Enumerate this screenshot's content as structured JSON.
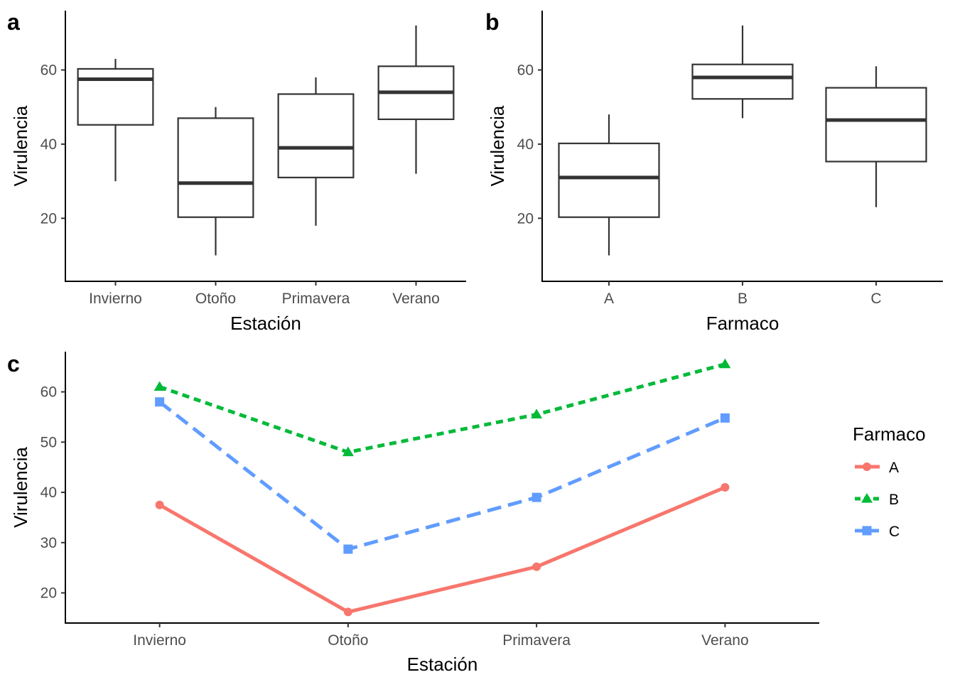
{
  "panels": {
    "a": {
      "tag": "a"
    },
    "b": {
      "tag": "b"
    },
    "c": {
      "tag": "c"
    }
  },
  "chart_data": [
    {
      "id": "a",
      "type": "box",
      "xlabel": "Estación",
      "ylabel": "Virulencia",
      "ylim": [
        3,
        76
      ],
      "yticks": [
        20,
        40,
        60
      ],
      "grid": false,
      "categories": [
        "Invierno",
        "Otoño",
        "Primavera",
        "Verano"
      ],
      "boxes": [
        {
          "category": "Invierno",
          "min": 30,
          "q1": 45.2,
          "median": 57.5,
          "q3": 60.3,
          "max": 63
        },
        {
          "category": "Otoño",
          "min": 10,
          "q1": 20.3,
          "median": 29.5,
          "q3": 47,
          "max": 50
        },
        {
          "category": "Primavera",
          "min": 18,
          "q1": 31,
          "median": 39,
          "q3": 53.5,
          "max": 58
        },
        {
          "category": "Verano",
          "min": 32,
          "q1": 46.7,
          "median": 54,
          "q3": 61,
          "max": 72
        }
      ]
    },
    {
      "id": "b",
      "type": "box",
      "xlabel": "Farmaco",
      "ylabel": "Virulencia",
      "ylim": [
        3,
        76
      ],
      "yticks": [
        20,
        40,
        60
      ],
      "grid": false,
      "categories": [
        "A",
        "B",
        "C"
      ],
      "boxes": [
        {
          "category": "A",
          "min": 10,
          "q1": 20.3,
          "median": 31,
          "q3": 40.2,
          "max": 48
        },
        {
          "category": "B",
          "min": 47,
          "q1": 52.2,
          "median": 58,
          "q3": 61.5,
          "max": 72
        },
        {
          "category": "C",
          "min": 23,
          "q1": 35.3,
          "median": 46.5,
          "q3": 55.2,
          "max": 61
        }
      ]
    },
    {
      "id": "c",
      "type": "line",
      "xlabel": "Estación",
      "ylabel": "Virulencia",
      "ylim": [
        14,
        68
      ],
      "yticks": [
        20,
        30,
        40,
        50,
        60
      ],
      "grid": false,
      "categories": [
        "Invierno",
        "Otoño",
        "Primavera",
        "Verano"
      ],
      "legend": {
        "title": "Farmaco",
        "position": "right"
      },
      "series": [
        {
          "name": "A",
          "values": [
            37.5,
            16.2,
            25.2,
            41
          ],
          "color": "#F8766D",
          "marker": "circle",
          "dash": "solid"
        },
        {
          "name": "B",
          "values": [
            61,
            48,
            55.5,
            65.5
          ],
          "color": "#00BA38",
          "marker": "triangle",
          "dash": "dotted"
        },
        {
          "name": "C",
          "values": [
            58,
            28.7,
            39,
            54.8
          ],
          "color": "#619CFF",
          "marker": "square",
          "dash": "dashed"
        }
      ]
    }
  ]
}
